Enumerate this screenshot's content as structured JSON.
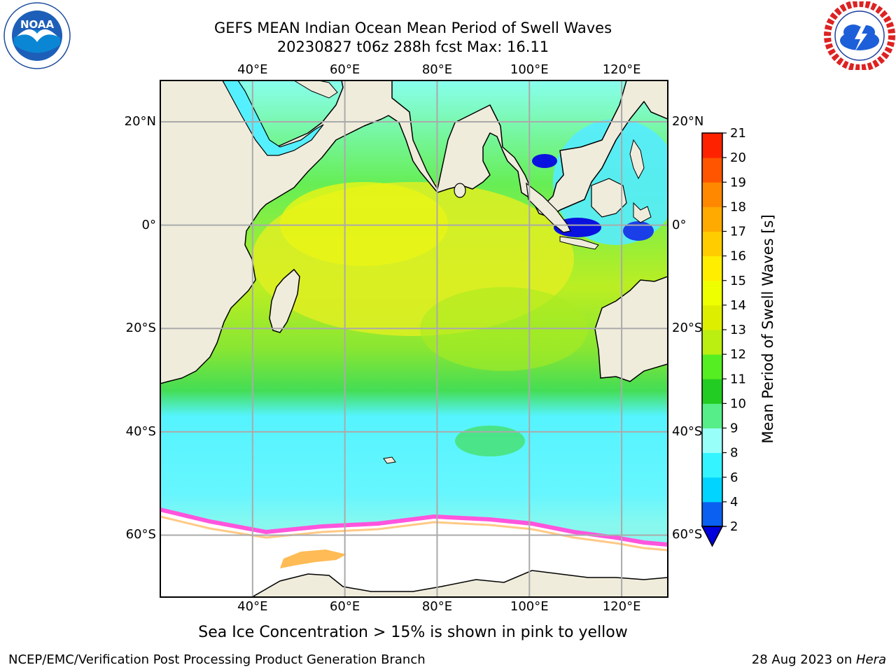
{
  "header": {
    "title_line1": "GEFS MEAN Indian Ocean Mean Period of Swell Waves",
    "title_line2": "20230827 t06z 288h fcst   Max: 16.11"
  },
  "map": {
    "lon_labels": [
      "40°E",
      "60°E",
      "80°E",
      "100°E",
      "120°E"
    ],
    "lat_labels": [
      "20°N",
      "0°",
      "20°S",
      "40°S",
      "60°S"
    ],
    "lon_values": [
      40,
      60,
      80,
      100,
      120
    ],
    "lat_values": [
      20,
      0,
      -20,
      -40,
      -60
    ],
    "extent": {
      "lon_min": 20,
      "lon_max": 130,
      "lat_min": -72,
      "lat_max": 28
    },
    "land_color": "#efecdc",
    "ice_colors": [
      "#ff55dd",
      "#ffbb66",
      "#ffee55"
    ]
  },
  "colorbar": {
    "label": "Mean Period of Swell Waves [s]",
    "ticks": [
      "2",
      "4",
      "6",
      "8",
      "9",
      "10",
      "11",
      "12",
      "13",
      "14",
      "15",
      "16",
      "17",
      "18",
      "19",
      "20",
      "21"
    ],
    "colors": [
      "#0a60f0",
      "#00d4ff",
      "#33f4ff",
      "#99fff9",
      "#55ee88",
      "#22cc22",
      "#55ee22",
      "#bbee11",
      "#ddee00",
      "#eeff00",
      "#ffee00",
      "#ffcc00",
      "#ffaa00",
      "#ff8800",
      "#ff5500",
      "#ff2200"
    ],
    "under_color": "#0000dd"
  },
  "footer": {
    "note": "Sea Ice Concentration > 15% is shown in pink to yellow",
    "credit": "NCEP/EMC/Verification Post Processing Product Generation Branch",
    "date": "28 Aug 2023 on ",
    "machine": "Hera"
  },
  "logos": {
    "noaa": {
      "text": "NOAA",
      "icon": "noaa-logo"
    },
    "nws": {
      "icon": "nws-logo"
    }
  }
}
